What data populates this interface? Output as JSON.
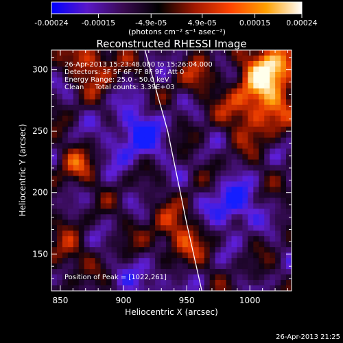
{
  "chart_data": {
    "type": "heatmap",
    "title": "Reconstructed RHESSI Image",
    "xlabel": "Heliocentric X (arcsec)",
    "ylabel": "Heliocentric Y (arcsec)",
    "xlim": [
      843,
      1033
    ],
    "ylim": [
      120,
      316
    ],
    "x_ticks": [
      850,
      900,
      950,
      1000
    ],
    "y_ticks": [
      150,
      200,
      250,
      300
    ],
    "colorbar": {
      "label": "(photons cm⁻² s⁻¹ asec⁻²)",
      "range": [
        -0.00024,
        0.00024
      ],
      "ticks": [
        "-0.00024",
        "-0.00015",
        "-4.9e-05",
        "4.9e-05",
        "0.00015",
        "0.00024"
      ],
      "colors": [
        "#0000ff",
        "#5a18c8",
        "#3a0a52",
        "#000000",
        "#a01800",
        "#ff4400",
        "#ffa000",
        "#ffffff"
      ]
    },
    "annotations": [
      "26-Apr-2013 15:23:48.000 to 15:26:04.000",
      "Detectors: 3F 5F 6F 7F 8F 9F, Att 0",
      "Energy Range: 25.0 - 50.0 keV",
      "Clean     Total counts: 3.39E+03"
    ],
    "peak_label": "Position of Peak = [1022,261]",
    "limb": [
      [
        917,
        316
      ],
      [
        935,
        250
      ],
      [
        950,
        175
      ],
      [
        962,
        120
      ]
    ]
  },
  "footer": {
    "timestamp": "26-Apr-2013 21:25"
  }
}
